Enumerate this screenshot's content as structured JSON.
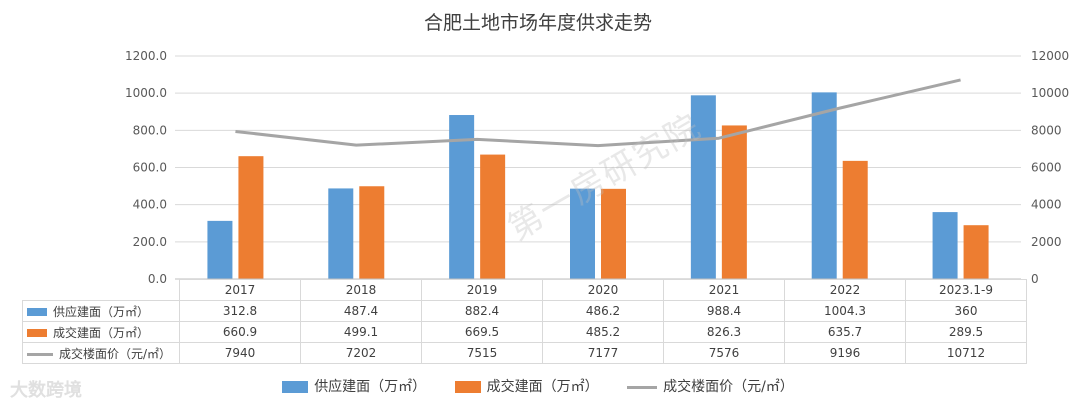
{
  "watermark": "第一房研究院",
  "logo": "大数跨境",
  "chart_data": {
    "type": "bar",
    "title": "合肥土地市场年度供求走势",
    "categories": [
      "2017",
      "2018",
      "2019",
      "2020",
      "2021",
      "2022",
      "2023.1-9"
    ],
    "series": [
      {
        "name": "供应建面（万㎡）",
        "type": "bar",
        "axis": "left",
        "color": "#5b9bd5",
        "values": [
          312.8,
          487.4,
          882.4,
          486.2,
          988.4,
          1004.3,
          360
        ],
        "labels": [
          "312.8",
          "487.4",
          "882.4",
          "486.2",
          "988.4",
          "1004.3",
          "360"
        ]
      },
      {
        "name": "成交建面（万㎡）",
        "type": "bar",
        "axis": "left",
        "color": "#ed7d31",
        "values": [
          660.9,
          499.1,
          669.5,
          485.2,
          826.3,
          635.7,
          289.5
        ],
        "labels": [
          "660.9",
          "499.1",
          "669.5",
          "485.2",
          "826.3",
          "635.7",
          "289.5"
        ]
      },
      {
        "name": "成交楼面价（元/㎡）",
        "type": "line",
        "axis": "right",
        "color": "#a5a5a5",
        "values": [
          7940,
          7202,
          7515,
          7177,
          7576,
          9196,
          10712
        ],
        "labels": [
          "7940",
          "7202",
          "7515",
          "7177",
          "7576",
          "9196",
          "10712"
        ]
      }
    ],
    "left_axis": {
      "ylim": [
        0,
        1200
      ],
      "ticks": [
        "0.0",
        "200.0",
        "400.0",
        "600.0",
        "800.0",
        "1000.0",
        "1200.0"
      ]
    },
    "right_axis": {
      "ylim": [
        0,
        12000
      ],
      "ticks": [
        "0",
        "2000",
        "4000",
        "6000",
        "8000",
        "10000",
        "12000"
      ]
    },
    "grid": true,
    "legend_position": "bottom",
    "data_table": true
  }
}
